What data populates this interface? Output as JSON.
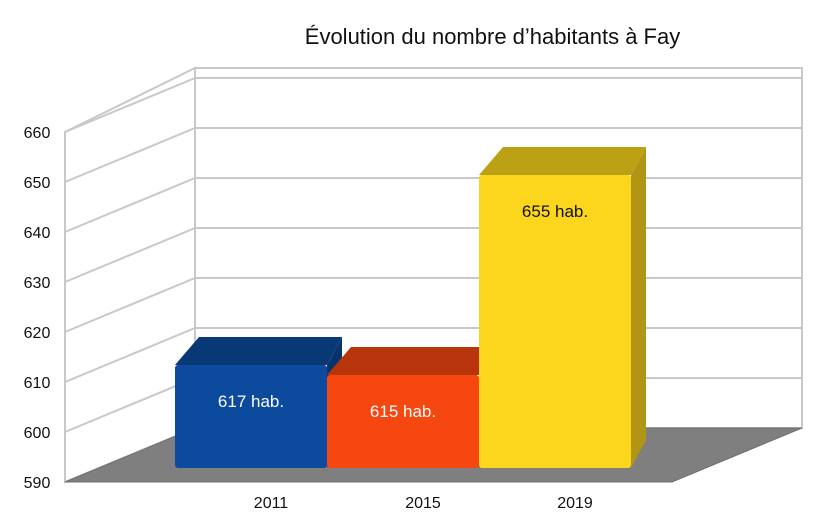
{
  "chart_data": {
    "type": "bar",
    "title": "Évolution du nombre d’habitants à Fay",
    "categories": [
      "2011",
      "2015",
      "2019"
    ],
    "values": [
      617,
      615,
      655
    ],
    "data_labels": [
      "617 hab.",
      "615 hab.",
      "655 hab."
    ],
    "bar_colors": [
      "#0b4a9c",
      "#f5470f",
      "#fbd61c"
    ],
    "ylim": [
      590,
      660
    ],
    "yticks": [
      "590",
      "600",
      "610",
      "620",
      "630",
      "640",
      "650",
      "660"
    ],
    "grid": true,
    "style": "3d",
    "xlabel": "",
    "ylabel": ""
  }
}
